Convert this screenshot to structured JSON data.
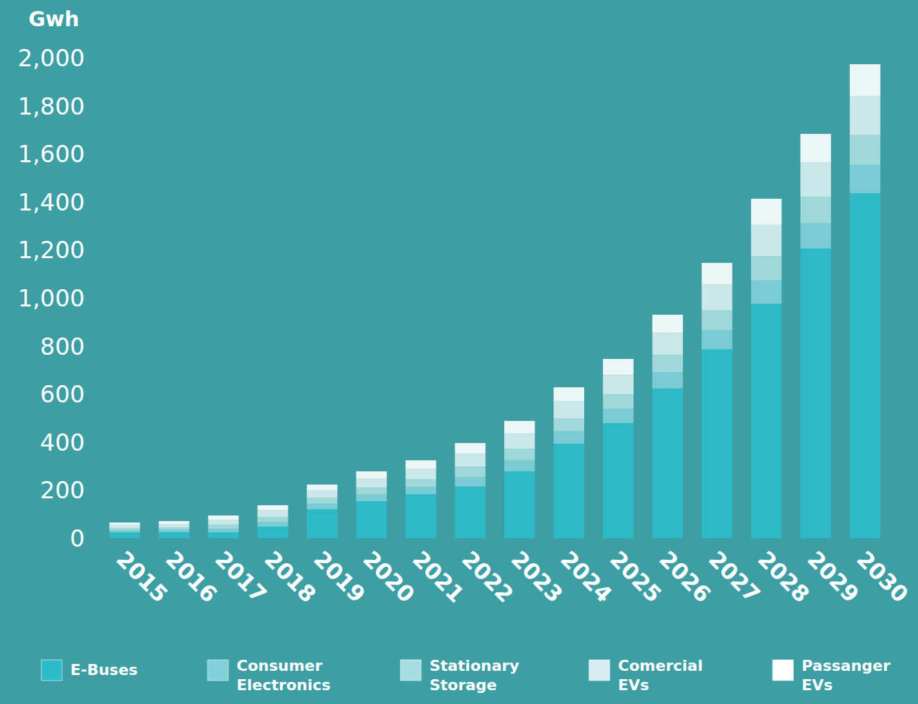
{
  "chart_data": {
    "type": "bar",
    "stacked": true,
    "grid": false,
    "legend": "bottom",
    "y_label": "Gwh",
    "categories": [
      "2015",
      "2016",
      "2017",
      "2018",
      "2019",
      "2020",
      "2021",
      "2022",
      "2023",
      "2024",
      "2025",
      "2026",
      "2027",
      "2028",
      "2029",
      "2030"
    ],
    "ylim": [
      0,
      2000
    ],
    "yticks": [
      0,
      200,
      400,
      600,
      800,
      {
        "value": 1000,
        "label": "1,000"
      },
      {
        "value": 1200,
        "label": "1,200"
      },
      {
        "value": 1400,
        "label": "1,400"
      },
      {
        "value": 1600,
        "label": "1,600"
      },
      {
        "value": 1800,
        "label": "1,800"
      },
      {
        "value": 2000,
        "label": "2,000"
      }
    ],
    "series": [
      {
        "name": "E-Buses",
        "color": "#2bbcc8",
        "values": [
          25,
          26,
          25,
          49,
          121,
          155,
          184,
          216,
          279,
          394,
          480,
          624,
          787,
          977,
          1207,
          1437
        ]
      },
      {
        "name": "Consumer Electronics",
        "color": "#7fd0d8",
        "values": [
          9,
          10,
          15,
          20,
          23,
          27,
          31,
          40,
          46,
          52,
          59,
          68,
          79,
          96,
          105,
          118
        ]
      },
      {
        "name": "Stationary Storage",
        "color": "#a6dde0",
        "values": [
          9,
          10,
          16,
          20,
          24,
          29,
          32,
          42,
          48,
          54,
          61,
          71,
          83,
          101,
          110,
          124
        ]
      },
      {
        "name": "Comercial EVs",
        "color": "#d6eef0",
        "values": [
          12,
          14,
          21,
          27,
          31,
          37,
          43,
          54,
          63,
          70,
          80,
          92,
          108,
          131,
          143,
          161
        ]
      },
      {
        "name": "Passanger EVs",
        "color": "#ffffff",
        "values": [
          11,
          12,
          18,
          22,
          25,
          31,
          35,
          45,
          53,
          59,
          67,
          76,
          90,
          109,
          119,
          134
        ]
      }
    ]
  }
}
